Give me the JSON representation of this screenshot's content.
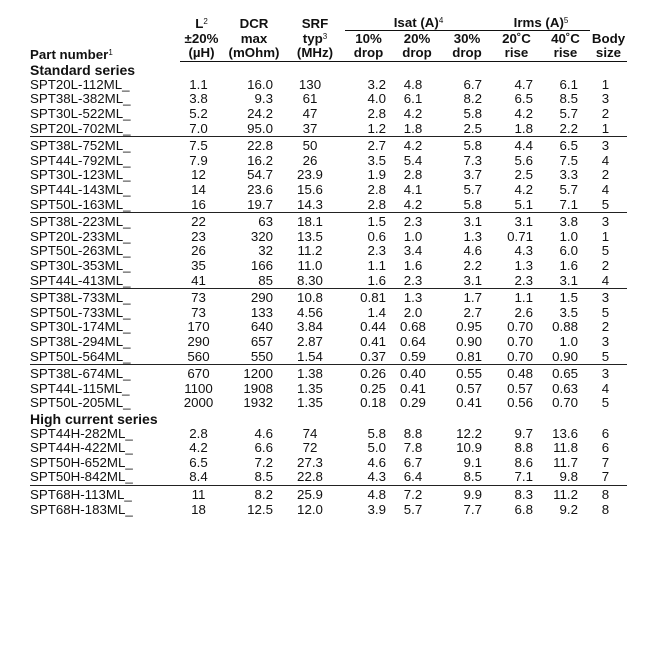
{
  "headers": {
    "part": "Part number",
    "part_sup": "1",
    "L_line1": "L",
    "L_sup": "2",
    "L_line2": "±20%",
    "L_line3": "(µH)",
    "dcr_line1": "DCR",
    "dcr_line2": "max",
    "dcr_line3": "(mOhm)",
    "srf_line1": "SRF",
    "srf_line2": "typ",
    "srf_sup": "3",
    "srf_line3": "(MHz)",
    "isat_group": "Isat (A)",
    "isat_sup": "4",
    "isat_10_a": "10%",
    "isat_10_b": "drop",
    "isat_20_a": "20%",
    "isat_20_b": "drop",
    "isat_30_a": "30%",
    "isat_30_b": "drop",
    "irms_group": "Irms (A)",
    "irms_sup": "5",
    "irms_20_a": "20˚C",
    "irms_20_b": "rise",
    "irms_40_a": "40˚C",
    "irms_40_b": "rise",
    "body_a": "Body",
    "body_b": "size"
  },
  "sections": [
    {
      "title": "Standard series",
      "groups": [
        [
          [
            "SPT20L-112ML_",
            "1.1",
            "16.0",
            "130",
            "3.2",
            "4.8",
            "6.7",
            "4.7",
            "6.1",
            "1"
          ],
          [
            "SPT38L-382ML_",
            "3.8",
            "9.3",
            "61",
            "4.0",
            "6.1",
            "8.2",
            "6.5",
            "8.5",
            "3"
          ],
          [
            "SPT30L-522ML_",
            "5.2",
            "24.2",
            "47",
            "2.8",
            "4.2",
            "5.8",
            "4.2",
            "5.7",
            "2"
          ],
          [
            "SPT20L-702ML_",
            "7.0",
            "95.0",
            "37",
            "1.2",
            "1.8",
            "2.5",
            "1.8",
            "2.2",
            "1"
          ]
        ],
        [
          [
            "SPT38L-752ML_",
            "7.5",
            "22.8",
            "50",
            "2.7",
            "4.2",
            "5.8",
            "4.4",
            "6.5",
            "3"
          ],
          [
            "SPT44L-792ML_",
            "7.9",
            "16.2",
            "26",
            "3.5",
            "5.4",
            "7.3",
            "5.6",
            "7.5",
            "4"
          ],
          [
            "SPT30L-123ML_",
            "12",
            "54.7",
            "23.9",
            "1.9",
            "2.8",
            "3.7",
            "2.5",
            "3.3",
            "2"
          ],
          [
            "SPT44L-143ML_",
            "14",
            "23.6",
            "15.6",
            "2.8",
            "4.1",
            "5.7",
            "4.2",
            "5.7",
            "4"
          ],
          [
            "SPT50L-163ML_",
            "16",
            "19.7",
            "14.3",
            "2.8",
            "4.2",
            "5.8",
            "5.1",
            "7.1",
            "5"
          ]
        ],
        [
          [
            "SPT38L-223ML_",
            "22",
            "63",
            "18.1",
            "1.5",
            "2.3",
            "3.1",
            "3.1",
            "3.8",
            "3"
          ],
          [
            "SPT20L-233ML_",
            "23",
            "320",
            "13.5",
            "0.6",
            "1.0",
            "1.3",
            "0.71",
            "1.0",
            "1"
          ],
          [
            "SPT50L-263ML_",
            "26",
            "32",
            "11.2",
            "2.3",
            "3.4",
            "4.6",
            "4.3",
            "6.0",
            "5"
          ],
          [
            "SPT30L-353ML_",
            "35",
            "166",
            "11.0",
            "1.1",
            "1.6",
            "2.2",
            "1.3",
            "1.6",
            "2"
          ],
          [
            "SPT44L-413ML_",
            "41",
            "85",
            "8.30",
            "1.6",
            "2.3",
            "3.1",
            "2.3",
            "3.1",
            "4"
          ]
        ],
        [
          [
            "SPT38L-733ML_",
            "73",
            "290",
            "10.8",
            "0.81",
            "1.3",
            "1.7",
            "1.1",
            "1.5",
            "3"
          ],
          [
            "SPT50L-733ML_",
            "73",
            "133",
            "4.56",
            "1.4",
            "2.0",
            "2.7",
            "2.6",
            "3.5",
            "5"
          ],
          [
            "SPT30L-174ML_",
            "170",
            "640",
            "3.84",
            "0.44",
            "0.68",
            "0.95",
            "0.70",
            "0.88",
            "2"
          ],
          [
            "SPT38L-294ML_",
            "290",
            "657",
            "2.87",
            "0.41",
            "0.64",
            "0.90",
            "0.70",
            "1.0",
            "3"
          ],
          [
            "SPT50L-564ML_",
            "560",
            "550",
            "1.54",
            "0.37",
            "0.59",
            "0.81",
            "0.70",
            "0.90",
            "5"
          ]
        ],
        [
          [
            "SPT38L-674ML_",
            "670",
            "1200",
            "1.38",
            "0.26",
            "0.40",
            "0.55",
            "0.48",
            "0.65",
            "3"
          ],
          [
            "SPT44L-115ML_",
            "1100",
            "1908",
            "1.35",
            "0.25",
            "0.41",
            "0.57",
            "0.57",
            "0.63",
            "4"
          ],
          [
            "SPT50L-205ML_",
            "2000",
            "1932",
            "1.35",
            "0.18",
            "0.29",
            "0.41",
            "0.56",
            "0.70",
            "5"
          ]
        ]
      ]
    },
    {
      "title": "High current series",
      "groups": [
        [
          [
            "SPT44H-282ML_",
            "2.8",
            "4.6",
            "74",
            "5.8",
            "8.8",
            "12.2",
            "9.7",
            "13.6",
            "6"
          ],
          [
            "SPT44H-422ML_",
            "4.2",
            "6.6",
            "72",
            "5.0",
            "7.8",
            "10.9",
            "8.8",
            "11.8",
            "6"
          ],
          [
            "SPT50H-652ML_",
            "6.5",
            "7.2",
            "27.3",
            "4.6",
            "6.7",
            "9.1",
            "8.6",
            "11.7",
            "7"
          ],
          [
            "SPT50H-842ML_",
            "8.4",
            "8.5",
            "22.8",
            "4.3",
            "6.4",
            "8.5",
            "7.1",
            "9.8",
            "7"
          ]
        ],
        [
          [
            "SPT68H-113ML_",
            "11",
            "8.2",
            "25.9",
            "4.8",
            "7.2",
            "9.9",
            "8.3",
            "11.2",
            "8"
          ],
          [
            "SPT68H-183ML_",
            "18",
            "12.5",
            "12.0",
            "3.9",
            "5.7",
            "7.7",
            "6.8",
            "9.2",
            "8"
          ]
        ]
      ]
    }
  ]
}
